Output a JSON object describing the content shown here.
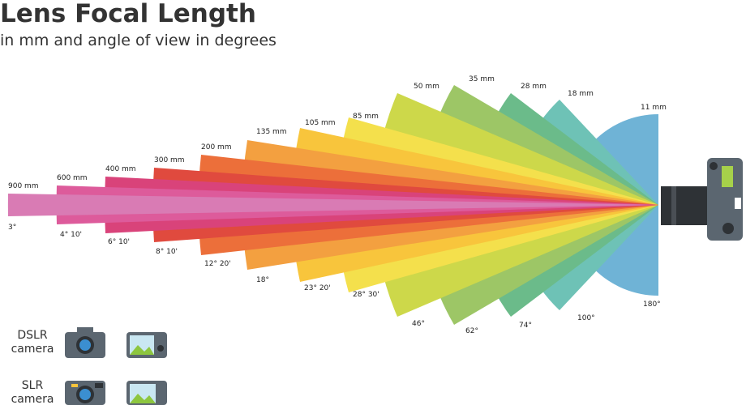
{
  "header": {
    "title": "Lens Focal Length",
    "subtitle": "in mm and angle of view in degrees"
  },
  "lenses": [
    {
      "focal": "900 mm",
      "angle": "3°"
    },
    {
      "focal": "600 mm",
      "angle": "4° 10'"
    },
    {
      "focal": "400 mm",
      "angle": "6° 10'"
    },
    {
      "focal": "300 mm",
      "angle": "8° 10'"
    },
    {
      "focal": "200 mm",
      "angle": "12° 20'"
    },
    {
      "focal": "135 mm",
      "angle": "18°"
    },
    {
      "focal": "105 mm",
      "angle": "23° 20'"
    },
    {
      "focal": "85 mm",
      "angle": "28° 30'"
    },
    {
      "focal": "50 mm",
      "angle": "46°"
    },
    {
      "focal": "35 mm",
      "angle": "62°"
    },
    {
      "focal": "28 mm",
      "angle": "74°"
    },
    {
      "focal": "18 mm",
      "angle": "100°"
    },
    {
      "focal": "11 mm",
      "angle": "180°"
    }
  ],
  "legend": [
    {
      "label": "DSLR camera"
    },
    {
      "label": "SLR camera"
    }
  ]
}
